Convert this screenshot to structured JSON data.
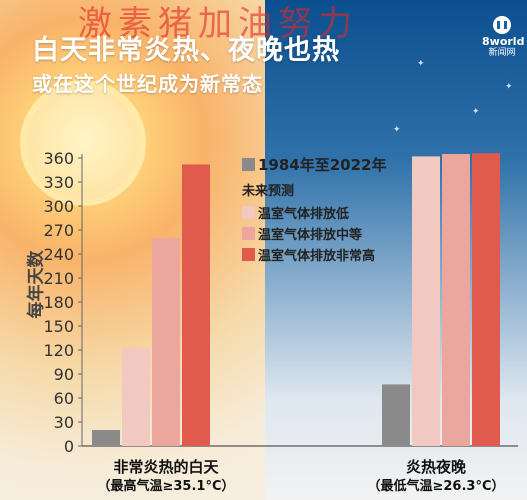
{
  "header": {
    "title": "白天非常炎热、夜晚也热",
    "subtitle": "或在这个世纪成为新常态",
    "watermark": "激素猪加油努力",
    "logo_line1": "8world",
    "logo_line2": "新闻网"
  },
  "chart_data": {
    "type": "bar",
    "title": "白天非常炎热、夜晚也热",
    "subtitle": "或在这个世纪成为新常态",
    "ylabel": "每年天数",
    "ylim": [
      0,
      375
    ],
    "yticks": [
      0,
      30,
      60,
      90,
      120,
      150,
      180,
      210,
      240,
      270,
      300,
      330,
      360
    ],
    "categories": [
      {
        "name": "非常炎热的白天",
        "note": "（最高气温≥35.1°C）"
      },
      {
        "name": "炎热夜晚",
        "note": "（最低气温≥26.3°C）"
      }
    ],
    "legend_heading": "未来预测",
    "series": [
      {
        "name": "1984年至2022年",
        "color": "#8a8a8a",
        "values": [
          20,
          77
        ]
      },
      {
        "name": "温室气体排放低",
        "color": "#f2c9c0",
        "values": [
          123,
          362
        ]
      },
      {
        "name": "温室气体排放中等",
        "color": "#eba79d",
        "values": [
          260,
          365
        ]
      },
      {
        "name": "温室气体排放非常高",
        "color": "#e05b4d",
        "values": [
          352,
          366
        ]
      }
    ],
    "grid": false,
    "legend_position": "center"
  }
}
